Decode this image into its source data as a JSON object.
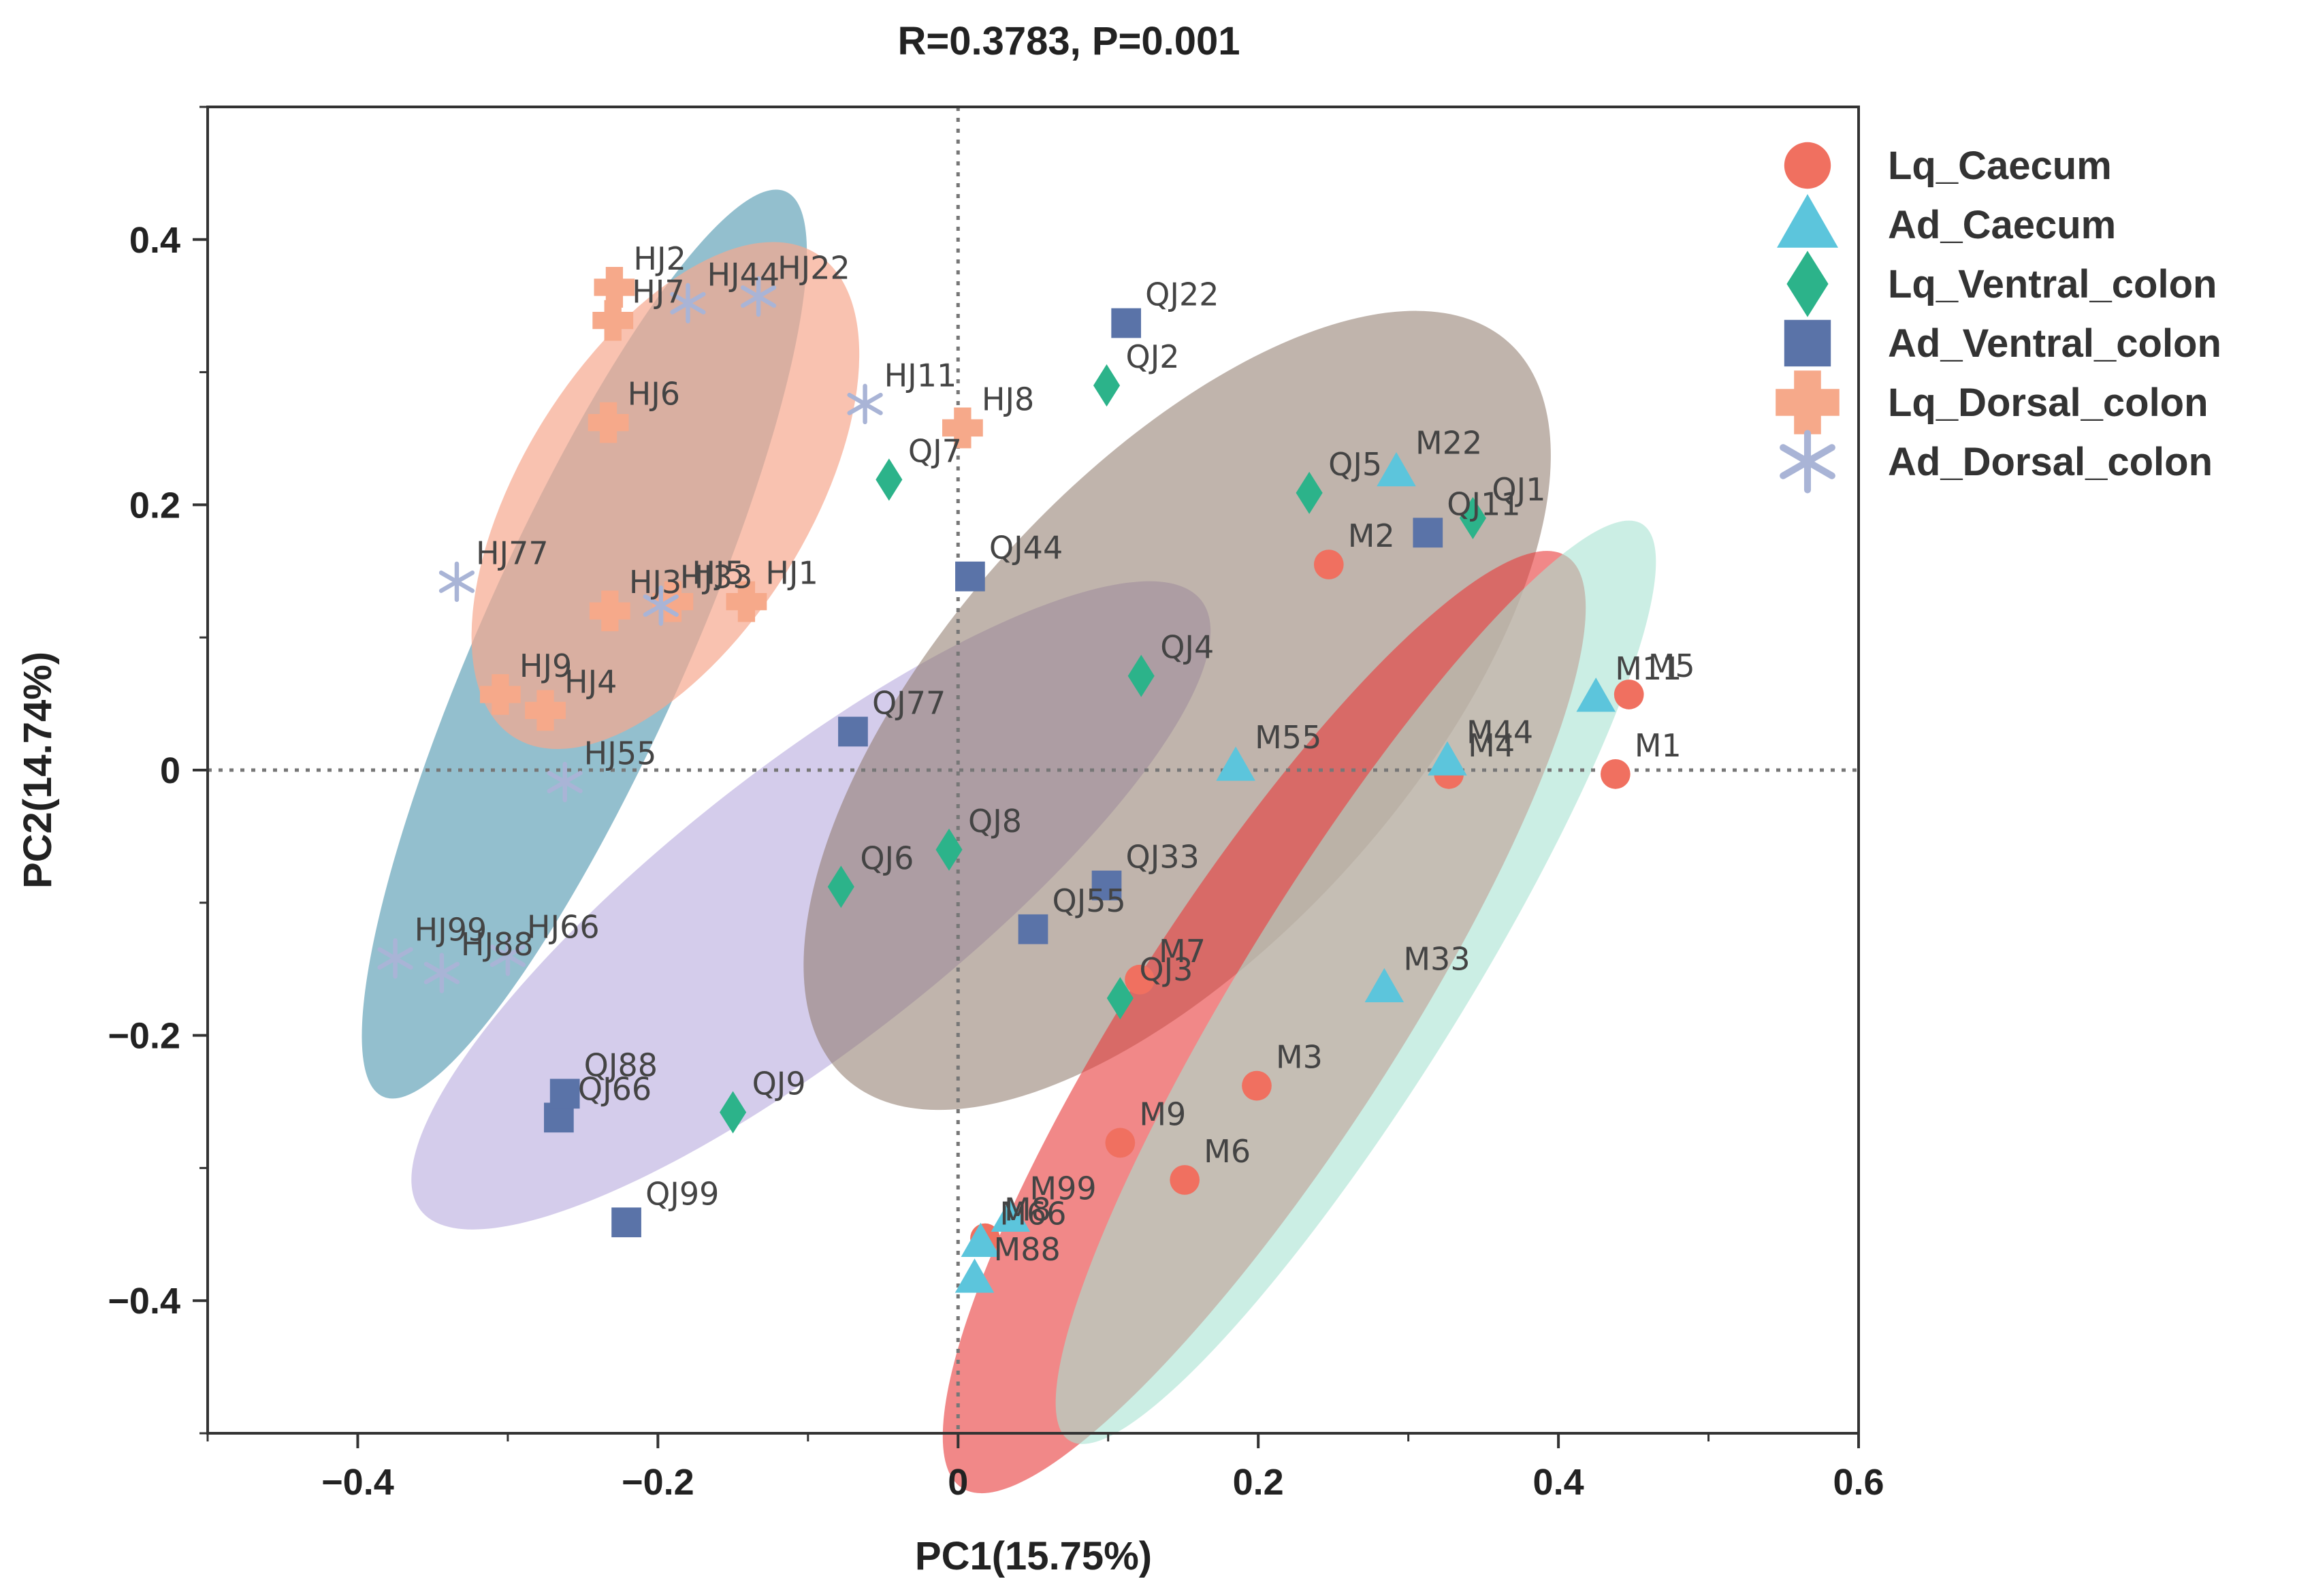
{
  "chart_data": {
    "type": "scatter",
    "title": "R=0.3783, P=0.001",
    "xlabel": "PC1(15.75%)",
    "ylabel": "PC2(14.74%)",
    "xlim": [
      -0.5,
      0.6
    ],
    "ylim": [
      -0.5,
      0.5
    ],
    "x_ticks": [
      -0.4,
      -0.2,
      0,
      0.2,
      0.4,
      0.6
    ],
    "x_tick_labels": [
      "−0.4",
      "−0.2",
      "0",
      "0.2",
      "0.4",
      "0.6"
    ],
    "y_ticks": [
      -0.4,
      -0.2,
      0,
      0.2,
      0.4
    ],
    "y_tick_labels": [
      "−0.4",
      "−0.2",
      "0",
      "0.2",
      "0.4"
    ],
    "reference_lines": {
      "x": 0,
      "y": 0,
      "style": "dotted"
    },
    "legend_position": "top-right",
    "series": [
      {
        "name": "Lq_Caecum",
        "marker": "circle",
        "color": "#f07060",
        "points": [
          {
            "label": "M1",
            "x": 0.438,
            "y": -0.003
          },
          {
            "label": "M2",
            "x": 0.247,
            "y": 0.155
          },
          {
            "label": "M3",
            "x": 0.199,
            "y": -0.238
          },
          {
            "label": "M4",
            "x": 0.327,
            "y": -0.003
          },
          {
            "label": "M5",
            "x": 0.447,
            "y": 0.057
          },
          {
            "label": "M6",
            "x": 0.151,
            "y": -0.309
          },
          {
            "label": "M7",
            "x": 0.121,
            "y": -0.158
          },
          {
            "label": "M8",
            "x": 0.018,
            "y": -0.353
          },
          {
            "label": "M9",
            "x": 0.108,
            "y": -0.281
          }
        ]
      },
      {
        "name": "Ad_Caecum",
        "marker": "triangle",
        "color": "#5cc5dc",
        "points": [
          {
            "label": "M11",
            "x": 0.425,
            "y": 0.055
          },
          {
            "label": "M22",
            "x": 0.292,
            "y": 0.225
          },
          {
            "label": "M33",
            "x": 0.284,
            "y": -0.164
          },
          {
            "label": "M44",
            "x": 0.326,
            "y": 0.007
          },
          {
            "label": "M55",
            "x": 0.185,
            "y": 0.003
          },
          {
            "label": "M66",
            "x": 0.015,
            "y": -0.356
          },
          {
            "label": "M88",
            "x": 0.011,
            "y": -0.383
          },
          {
            "label": "M99",
            "x": 0.035,
            "y": -0.337
          }
        ]
      },
      {
        "name": "Lq_Ventral_colon",
        "marker": "diamond",
        "color": "#2cb38a",
        "points": [
          {
            "label": "QJ1",
            "x": 0.343,
            "y": 0.19
          },
          {
            "label": "QJ2",
            "x": 0.099,
            "y": 0.29
          },
          {
            "label": "QJ3",
            "x": 0.108,
            "y": -0.172
          },
          {
            "label": "QJ4",
            "x": 0.122,
            "y": 0.071
          },
          {
            "label": "QJ5",
            "x": 0.234,
            "y": 0.209
          },
          {
            "label": "QJ6",
            "x": -0.078,
            "y": -0.088
          },
          {
            "label": "QJ7",
            "x": -0.046,
            "y": 0.219
          },
          {
            "label": "QJ8",
            "x": -0.006,
            "y": -0.06
          },
          {
            "label": "QJ9",
            "x": -0.15,
            "y": -0.258
          }
        ]
      },
      {
        "name": "Ad_Ventral_colon",
        "marker": "square",
        "color": "#5a73a8",
        "points": [
          {
            "label": "QJ11",
            "x": 0.313,
            "y": 0.179
          },
          {
            "label": "QJ22",
            "x": 0.112,
            "y": 0.337
          },
          {
            "label": "QJ33",
            "x": 0.099,
            "y": -0.087
          },
          {
            "label": "QJ44",
            "x": 0.008,
            "y": 0.146
          },
          {
            "label": "QJ55",
            "x": 0.05,
            "y": -0.12
          },
          {
            "label": "QJ66",
            "x": -0.266,
            "y": -0.262
          },
          {
            "label": "QJ77",
            "x": -0.07,
            "y": 0.029
          },
          {
            "label": "QJ88",
            "x": -0.262,
            "y": -0.244
          },
          {
            "label": "QJ99",
            "x": -0.221,
            "y": -0.341
          }
        ]
      },
      {
        "name": "Lq_Dorsal_colon",
        "marker": "plus",
        "color": "#f6a98a",
        "points": [
          {
            "label": "HJ1",
            "x": -0.141,
            "y": 0.127
          },
          {
            "label": "HJ2",
            "x": -0.229,
            "y": 0.364
          },
          {
            "label": "HJ3",
            "x": -0.232,
            "y": 0.12
          },
          {
            "label": "HJ4",
            "x": -0.275,
            "y": 0.045
          },
          {
            "label": "HJ5",
            "x": -0.19,
            "y": 0.127
          },
          {
            "label": "HJ6",
            "x": -0.233,
            "y": 0.262
          },
          {
            "label": "HJ7",
            "x": -0.23,
            "y": 0.339
          },
          {
            "label": "HJ8",
            "x": 0.003,
            "y": 0.258
          },
          {
            "label": "HJ9",
            "x": -0.305,
            "y": 0.057
          }
        ]
      },
      {
        "name": "Ad_Dorsal_colon",
        "marker": "asterisk",
        "color": "#a9b4d6",
        "points": [
          {
            "label": "HJ11",
            "x": -0.062,
            "y": 0.276
          },
          {
            "label": "HJ22",
            "x": -0.133,
            "y": 0.357
          },
          {
            "label": "HJ33",
            "x": -0.198,
            "y": 0.124
          },
          {
            "label": "HJ44",
            "x": -0.18,
            "y": 0.352
          },
          {
            "label": "HJ55",
            "x": -0.262,
            "y": -0.009
          },
          {
            "label": "HJ66",
            "x": -0.3,
            "y": -0.14
          },
          {
            "label": "HJ77",
            "x": -0.334,
            "y": 0.142
          },
          {
            "label": "HJ88",
            "x": -0.344,
            "y": -0.153
          },
          {
            "label": "HJ99",
            "x": -0.375,
            "y": -0.142
          }
        ]
      }
    ],
    "ellipses": [
      {
        "group": "Ad_Dorsal_colon",
        "color": "#3b8aa6",
        "opacity": 0.55,
        "cx": -0.249,
        "cy": 0.095,
        "rx": 0.33,
        "ry": 0.078,
        "angle_deg": 66
      },
      {
        "group": "Lq_Dorsal_colon",
        "color": "#f7a88e",
        "opacity": 0.7,
        "cx": -0.195,
        "cy": 0.207,
        "rx": 0.19,
        "ry": 0.108,
        "angle_deg": 58
      },
      {
        "group": "Ad_Ventral_colon",
        "color": "#a99ad7",
        "opacity": 0.5,
        "cx": -0.098,
        "cy": -0.102,
        "rx": 0.33,
        "ry": 0.105,
        "angle_deg": 38
      },
      {
        "group": "Lq_Ventral_colon",
        "color": "#8c7667",
        "opacity": 0.55,
        "cx": 0.146,
        "cy": 0.045,
        "rx": 0.33,
        "ry": 0.175,
        "angle_deg": 48
      },
      {
        "group": "Lq_Caecum",
        "color": "#e83838",
        "opacity": 0.6,
        "cx": 0.204,
        "cy": -0.19,
        "rx": 0.37,
        "ry": 0.098,
        "angle_deg": 57
      },
      {
        "group": "Ad_Caecum",
        "color": "#a8e2d2",
        "opacity": 0.6,
        "cx": 0.265,
        "cy": -0.16,
        "rx": 0.36,
        "ry": 0.08,
        "angle_deg": 58
      }
    ]
  }
}
